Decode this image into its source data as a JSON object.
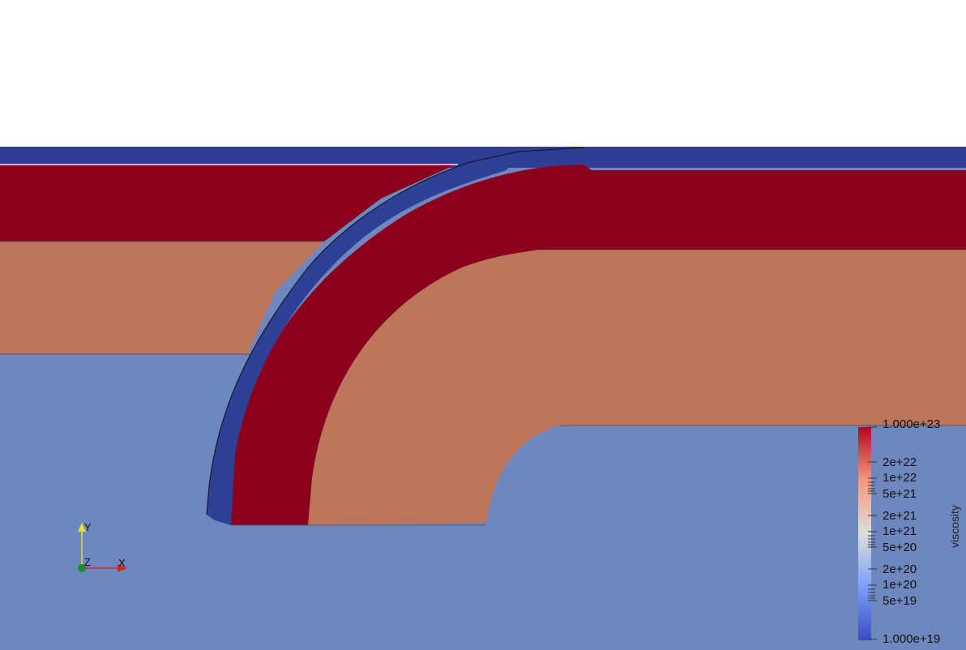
{
  "legend": {
    "title": "viscosity",
    "max_label": "1.000e+23",
    "min_label": "1.000e+19",
    "scale": "log",
    "colors": [
      "#3b4cc0",
      "#dddddd",
      "#b40426"
    ],
    "labels": [
      "2e+22",
      "1e+22",
      "5e+21",
      "2e+21",
      "1e+21",
      "5e+20",
      "2e+20",
      "1e+20",
      "5e+19"
    ]
  },
  "orientation_axes": {
    "x": "X",
    "y": "Y",
    "z": "Z",
    "x_color": "#e02020",
    "y_color": "#e8e020",
    "z_color": "#1e8a2a"
  },
  "scene_colors": {
    "background": "#ffffff",
    "sticky_air": "#2f3e94",
    "strong_layer": "#8b001c",
    "crust": "#bd765c",
    "mantle": "#6f87bf",
    "weak_zone": "#2e3f96"
  }
}
